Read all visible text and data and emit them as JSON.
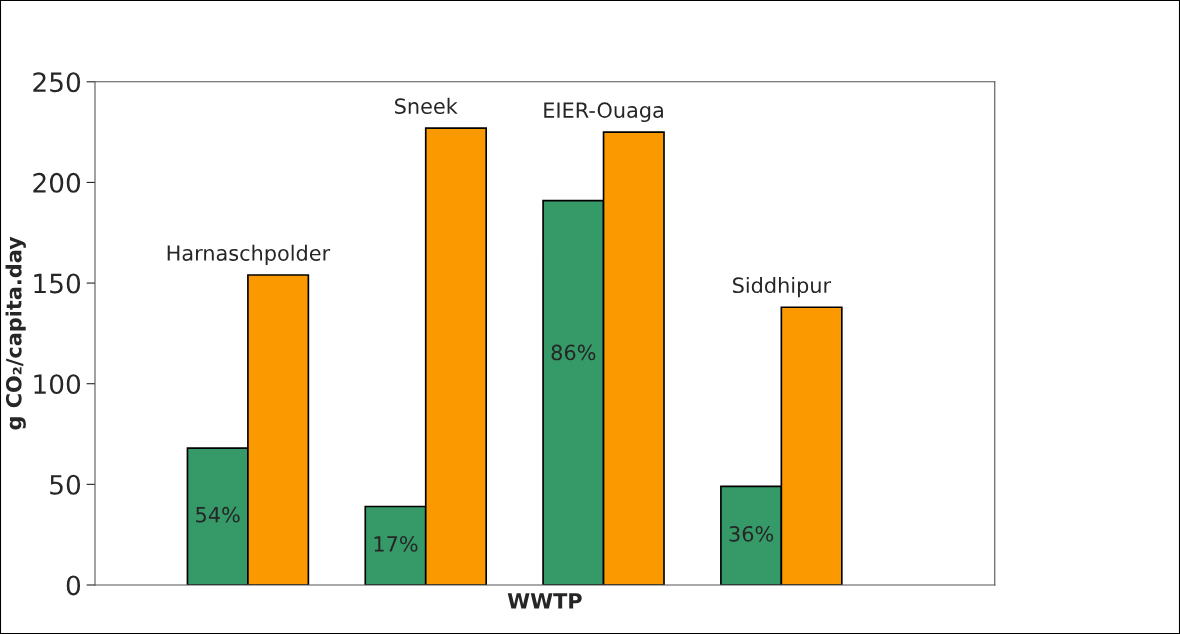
{
  "chart_data": {
    "type": "bar",
    "xlabel": "WWTP",
    "ylabel": "g CO₂/capita.day",
    "categories": [
      null,
      null,
      null,
      null
    ],
    "series": [
      {
        "color": "#359a68",
        "values": [
          68,
          39,
          191,
          49
        ]
      },
      {
        "color": "#fb9a00",
        "values": [
          154,
          227,
          225,
          138
        ]
      }
    ],
    "annotations": [
      "Harnaschpolder",
      "Sneek",
      "EIER-Ouaga",
      "Siddhipur",
      "54%",
      "17%",
      "86%",
      "36%"
    ],
    "ylim": [
      0,
      250
    ],
    "yticks": [
      0,
      50,
      100,
      150,
      200,
      250
    ],
    "grid": false,
    "legend": false
  }
}
